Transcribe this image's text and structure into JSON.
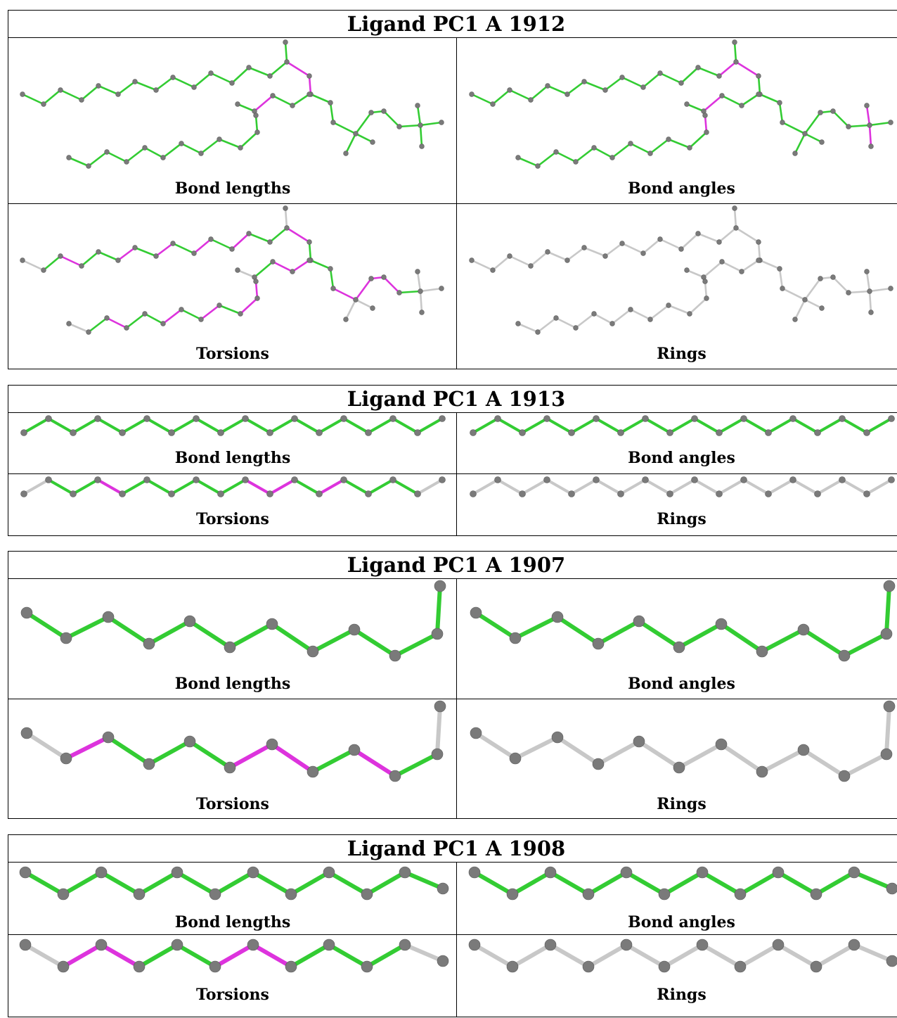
{
  "colors": {
    "ok": "#33cc33",
    "outlier": "#dd33dd",
    "neutral": "#c8c8c8",
    "atom": "#7a7a7a"
  },
  "tables": [
    {
      "title": "Ligand PC1 A 1912",
      "panels": [
        {
          "caption": "Bond lengths",
          "mode": "bondlengths"
        },
        {
          "caption": "Bond angles",
          "mode": "bondangles"
        },
        {
          "caption": "Torsions",
          "mode": "torsions"
        },
        {
          "caption": "Rings",
          "mode": "rings"
        }
      ]
    },
    {
      "title": "Ligand PC1 A 1913",
      "panels": [
        {
          "caption": "Bond lengths",
          "bonds": [
            "ok",
            "ok",
            "ok",
            "ok",
            "ok",
            "ok",
            "ok",
            "ok",
            "ok",
            "ok",
            "ok",
            "ok",
            "ok",
            "ok",
            "ok",
            "ok",
            "ok",
            "ok"
          ]
        },
        {
          "caption": "Bond angles",
          "bonds": [
            "ok",
            "ok",
            "ok",
            "ok",
            "ok",
            "ok",
            "ok",
            "ok",
            "ok",
            "ok",
            "ok",
            "ok",
            "ok",
            "ok",
            "ok",
            "ok",
            "ok",
            "ok"
          ]
        },
        {
          "caption": "Torsions",
          "bonds": [
            "neutral",
            "ok",
            "ok",
            "outlier",
            "ok",
            "ok",
            "ok",
            "ok",
            "ok",
            "outlier",
            "outlier",
            "ok",
            "outlier",
            "ok",
            "ok",
            "ok",
            "neutral",
            "neutral"
          ]
        },
        {
          "caption": "Rings",
          "bonds": [
            "neutral",
            "neutral",
            "neutral",
            "neutral",
            "neutral",
            "neutral",
            "neutral",
            "neutral",
            "neutral",
            "neutral",
            "neutral",
            "neutral",
            "neutral",
            "neutral",
            "neutral",
            "neutral",
            "neutral",
            "neutral"
          ]
        }
      ]
    },
    {
      "title": "Ligand PC1 A 1907",
      "panels": [
        {
          "caption": "Bond lengths",
          "bonds": [
            "ok",
            "ok",
            "ok",
            "ok",
            "ok",
            "ok",
            "ok",
            "ok",
            "ok",
            "ok",
            "ok"
          ]
        },
        {
          "caption": "Bond angles",
          "bonds": [
            "ok",
            "ok",
            "ok",
            "ok",
            "ok",
            "ok",
            "ok",
            "ok",
            "ok",
            "ok",
            "ok"
          ]
        },
        {
          "caption": "Torsions",
          "bonds": [
            "neutral",
            "outlier",
            "ok",
            "ok",
            "ok",
            "outlier",
            "outlier",
            "ok",
            "outlier",
            "ok",
            "neutral"
          ]
        },
        {
          "caption": "Rings",
          "bonds": [
            "neutral",
            "neutral",
            "neutral",
            "neutral",
            "neutral",
            "neutral",
            "neutral",
            "neutral",
            "neutral",
            "neutral",
            "neutral"
          ]
        }
      ]
    },
    {
      "title": "Ligand PC1 A 1908",
      "panels": [
        {
          "caption": "Bond lengths",
          "bonds": [
            "ok",
            "ok",
            "ok",
            "ok",
            "ok",
            "ok",
            "ok",
            "ok",
            "ok",
            "ok",
            "ok"
          ]
        },
        {
          "caption": "Bond angles",
          "bonds": [
            "ok",
            "ok",
            "ok",
            "ok",
            "ok",
            "ok",
            "ok",
            "ok",
            "ok",
            "ok",
            "ok"
          ]
        },
        {
          "caption": "Torsions",
          "bonds": [
            "neutral",
            "outlier",
            "outlier",
            "ok",
            "ok",
            "outlier",
            "outlier",
            "ok",
            "ok",
            "ok",
            "neutral"
          ]
        },
        {
          "caption": "Rings",
          "bonds": [
            "neutral",
            "neutral",
            "neutral",
            "neutral",
            "neutral",
            "neutral",
            "neutral",
            "neutral",
            "neutral",
            "neutral",
            "neutral"
          ]
        }
      ]
    }
  ]
}
